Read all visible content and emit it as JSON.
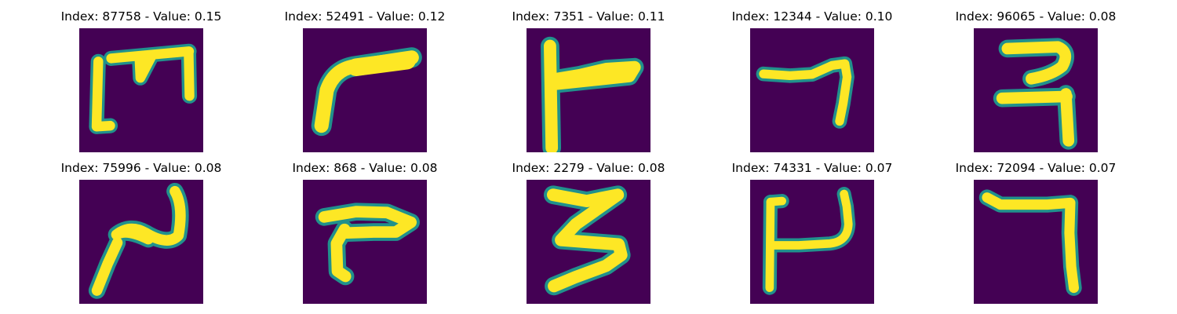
{
  "colors": {
    "background": "#440154",
    "stroke_core": "#fde725",
    "stroke_edge": "#21918c"
  },
  "panels": [
    {
      "title": "Index: 87758 - Value: 0.15",
      "glyph": "ladder"
    },
    {
      "title": "Index: 52491 - Value: 0.12",
      "glyph": "hook-left"
    },
    {
      "title": "Index: 7351 - Value: 0.11",
      "glyph": "t-bar"
    },
    {
      "title": "Index: 12344 - Value: 0.10",
      "glyph": "seven-short"
    },
    {
      "title": "Index: 96065 - Value: 0.08",
      "glyph": "hook-two"
    },
    {
      "title": "Index: 75996 - Value: 0.08",
      "glyph": "reverse-z"
    },
    {
      "title": "Index: 868 - Value: 0.08",
      "glyph": "t-bent"
    },
    {
      "title": "Index: 2279 - Value: 0.08",
      "glyph": "three-angular"
    },
    {
      "title": "Index: 74331 - Value: 0.07",
      "glyph": "u-open"
    },
    {
      "title": "Index: 72094 - Value: 0.07",
      "glyph": "seven-square"
    }
  ]
}
